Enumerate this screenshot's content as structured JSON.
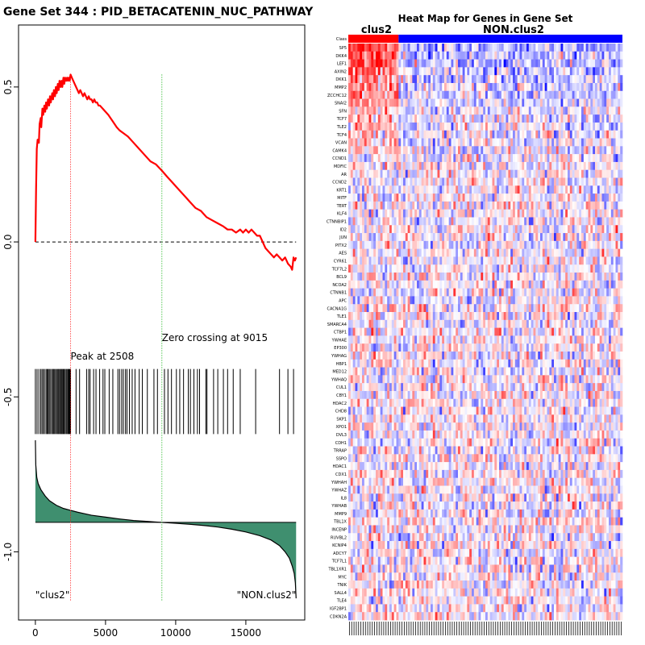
{
  "colors": {
    "es_line": "#ff0000",
    "peak_line": "#ff0000",
    "zero_line": "#00aa00",
    "rank_fill": "#3f8f6f",
    "hm_high": "#ff0000",
    "hm_low": "#0000ff",
    "class_pos": "#ff0000",
    "class_neg": "#0000ff"
  },
  "chart_data": [
    {
      "type": "line",
      "title": "Gene Set  344 : PID_BETACATENIN_NUC_PATHWAY",
      "xlabel": "",
      "ylabel": "",
      "xlim": [
        -1200,
        19200
      ],
      "ylim": [
        -1.22,
        0.7
      ],
      "x_ticks": [
        0,
        5000,
        10000,
        15000
      ],
      "x_tick_labels": [
        "0",
        "5000",
        "10000",
        "15000"
      ],
      "y_ticks": [
        0.5,
        0.0,
        -0.5,
        -1.0
      ],
      "y_tick_labels": [
        "0.5",
        "0.0",
        "-0.5",
        "-1.0"
      ],
      "n_genes": 18583,
      "series": [
        {
          "name": "Running enrichment score",
          "x": [
            0,
            50,
            100,
            160,
            250,
            300,
            380,
            420,
            500,
            560,
            640,
            700,
            760,
            820,
            900,
            980,
            1040,
            1100,
            1200,
            1260,
            1320,
            1400,
            1460,
            1520,
            1600,
            1660,
            1720,
            1800,
            1860,
            1920,
            2000,
            2060,
            2120,
            2200,
            2260,
            2320,
            2380,
            2440,
            2508,
            2600,
            2700,
            2800,
            2900,
            3000,
            3100,
            3200,
            3300,
            3400,
            3500,
            3600,
            3700,
            3800,
            3900,
            4000,
            4100,
            4200,
            4300,
            4400,
            4500,
            4600,
            4800,
            5000,
            5200,
            5500,
            5800,
            6000,
            6300,
            6600,
            7000,
            7400,
            7800,
            8200,
            8600,
            9015,
            9400,
            9800,
            10200,
            10600,
            11000,
            11400,
            11800,
            12200,
            12600,
            13000,
            13400,
            13700,
            14000,
            14300,
            14600,
            14800,
            15000,
            15200,
            15400,
            15600,
            15800,
            16000,
            16200,
            16400,
            16600,
            16800,
            17000,
            17200,
            17400,
            17600,
            17800,
            18000,
            18200,
            18300,
            18400,
            18500,
            18583
          ],
          "values": [
            0.0,
            0.17,
            0.3,
            0.33,
            0.32,
            0.38,
            0.4,
            0.37,
            0.43,
            0.41,
            0.44,
            0.42,
            0.45,
            0.43,
            0.46,
            0.44,
            0.47,
            0.45,
            0.48,
            0.46,
            0.49,
            0.47,
            0.5,
            0.48,
            0.51,
            0.49,
            0.52,
            0.5,
            0.52,
            0.5,
            0.53,
            0.51,
            0.53,
            0.52,
            0.53,
            0.52,
            0.53,
            0.52,
            0.54,
            0.53,
            0.52,
            0.51,
            0.5,
            0.49,
            0.48,
            0.49,
            0.48,
            0.47,
            0.48,
            0.47,
            0.46,
            0.47,
            0.46,
            0.46,
            0.45,
            0.46,
            0.45,
            0.45,
            0.44,
            0.44,
            0.43,
            0.42,
            0.41,
            0.39,
            0.37,
            0.36,
            0.35,
            0.34,
            0.32,
            0.3,
            0.28,
            0.26,
            0.25,
            0.23,
            0.21,
            0.19,
            0.17,
            0.15,
            0.13,
            0.11,
            0.1,
            0.08,
            0.07,
            0.06,
            0.05,
            0.04,
            0.04,
            0.03,
            0.04,
            0.03,
            0.04,
            0.03,
            0.04,
            0.03,
            0.02,
            0.02,
            0.0,
            -0.02,
            -0.03,
            -0.04,
            -0.05,
            -0.04,
            -0.05,
            -0.06,
            -0.05,
            -0.07,
            -0.08,
            -0.09,
            -0.05,
            -0.06,
            -0.05
          ]
        }
      ],
      "baseline": 0.0,
      "peak": {
        "x": 2508,
        "label": "Peak at 2508"
      },
      "zero_crossing": {
        "x": 9015,
        "label": "Zero crossing at 9015"
      },
      "hit_band": [
        -0.41,
        -0.62
      ],
      "hits": [
        0,
        120,
        250,
        380,
        470,
        560,
        650,
        760,
        830,
        900,
        980,
        1050,
        1150,
        1230,
        1290,
        1370,
        1440,
        1520,
        1600,
        1660,
        1730,
        1800,
        1860,
        1920,
        1990,
        2060,
        2120,
        2200,
        2260,
        2330,
        2390,
        2450,
        2508,
        2900,
        3150,
        3650,
        3800,
        3900,
        4150,
        4320,
        4580,
        4820,
        4950,
        5260,
        5520,
        5880,
        6000,
        6150,
        6270,
        6420,
        6530,
        6700,
        6900,
        7100,
        7400,
        7620,
        7980,
        8450,
        8700,
        9200,
        9450,
        9700,
        10050,
        10290,
        10560,
        10900,
        11050,
        11300,
        11550,
        11700,
        12150,
        12230,
        12700,
        13000,
        13400,
        13700,
        14100,
        14600,
        15700,
        17400,
        18000,
        18400
      ],
      "rank_metric": {
        "baseline": -0.905,
        "x": [
          0,
          30,
          100,
          200,
          400,
          700,
          1000,
          1500,
          2000,
          2500,
          3000,
          4000,
          5000,
          6000,
          7000,
          8000,
          9000,
          10000,
          11000,
          12000,
          13000,
          14000,
          15000,
          16000,
          16800,
          17400,
          17800,
          18100,
          18300,
          18450,
          18530,
          18583
        ],
        "values": [
          -0.64,
          -0.72,
          -0.76,
          -0.78,
          -0.8,
          -0.82,
          -0.835,
          -0.85,
          -0.86,
          -0.866,
          -0.872,
          -0.882,
          -0.888,
          -0.894,
          -0.899,
          -0.902,
          -0.905,
          -0.908,
          -0.911,
          -0.915,
          -0.92,
          -0.927,
          -0.936,
          -0.948,
          -0.962,
          -0.98,
          -1.0,
          -1.02,
          -1.045,
          -1.07,
          -1.1,
          -1.15
        ]
      },
      "left_class_label": "\"clus2\"",
      "right_class_label": "\"NON.clus2\""
    },
    {
      "type": "heatmap",
      "title": "Heat Map for Genes in Gene Set",
      "group_labels": [
        "clus2",
        "NON.clus2"
      ],
      "class_row_label": "Class",
      "n_columns": 120,
      "n_positive_columns": 22,
      "genes": [
        "SP5",
        "DKK4",
        "LEF1",
        "AXIN2",
        "DKK1",
        "MMP2",
        "ZCCHC12",
        "SNAI2",
        "SFN",
        "TCF7",
        "TLE2",
        "TCF4",
        "VCAN",
        "CAMK4",
        "CCND1",
        "MDFIC",
        "AR",
        "CCND2",
        "KRT1",
        "MITF",
        "TERT",
        "KLF4",
        "CTNNBIP1",
        "ID2",
        "JUN",
        "PITX2",
        "AES",
        "CYR61",
        "TCF7L2",
        "BCL9",
        "NCOA2",
        "CTNNB1",
        "APC",
        "CACNA1G",
        "TLE1",
        "SMARCA4",
        "CTBP1",
        "YWHAE",
        "EP300",
        "YWHAG",
        "HBP1",
        "MED12",
        "YWHAQ",
        "CUL1",
        "CBY1",
        "HDAC2",
        "CHD8",
        "SKP1",
        "XPO1",
        "DVL3",
        "CDH1",
        "TRRAP",
        "SSPO",
        "HDAC1",
        "CDX1",
        "YWHAH",
        "YWHAZ",
        "IL8",
        "YWHAB",
        "MMP9",
        "TBL1X",
        "INCENP",
        "RUVBL2",
        "KCNIP4",
        "ADCY7",
        "TCF7L1",
        "TBL1XR1",
        "MYC",
        "TNIK",
        "SALL4",
        "TLE4",
        "IGF2BP1",
        "CDKN2A"
      ]
    }
  ]
}
